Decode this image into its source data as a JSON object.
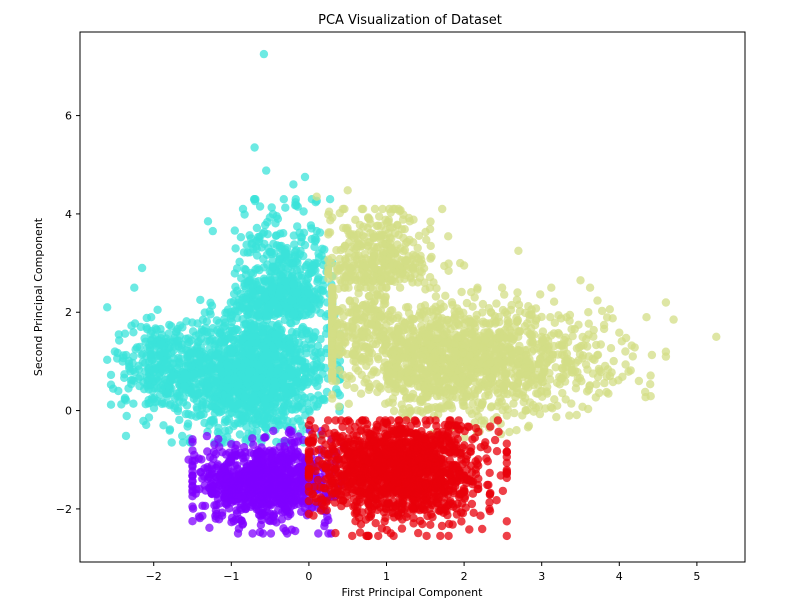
{
  "chart_data": {
    "type": "scatter",
    "title": "PCA Visualization of Dataset",
    "xlabel": "First Principal Component",
    "ylabel": "Second Principal Component",
    "xlim": [
      -2.95,
      5.62
    ],
    "ylim": [
      -3.08,
      7.7
    ],
    "x_ticks": [
      -2,
      -1,
      0,
      1,
      2,
      3,
      4,
      5
    ],
    "y_ticks": [
      -2,
      0,
      2,
      4,
      6
    ],
    "x_tick_labels": [
      "−2",
      "−1",
      "0",
      "1",
      "2",
      "3",
      "4",
      "5"
    ],
    "y_tick_labels": [
      "−2",
      "0",
      "2",
      "4",
      "6"
    ],
    "grid": false,
    "legend": "none",
    "marker_alpha": 0.75,
    "series": [
      {
        "color": "#3BE3DA",
        "cluster_extent": {
          "x": [
            -2.6,
            0.4
          ],
          "y": [
            -0.7,
            4.8
          ]
        },
        "points": [
          [
            -0.58,
            7.25
          ],
          [
            -0.7,
            5.35
          ],
          [
            -0.55,
            4.88
          ],
          [
            -0.05,
            4.75
          ],
          [
            -0.2,
            4.6
          ],
          [
            -2.15,
            2.9
          ],
          [
            -2.6,
            2.1
          ],
          [
            -2.25,
            2.5
          ],
          [
            -2.45,
            1.55
          ],
          [
            -2.5,
            1.2
          ],
          [
            -1.95,
            2.05
          ],
          [
            -1.3,
            3.85
          ],
          [
            -0.85,
            4.1
          ],
          [
            -0.4,
            3.9
          ],
          [
            0.1,
            3.65
          ],
          [
            -1.4,
            2.25
          ],
          [
            -0.3,
            3.2
          ]
        ]
      },
      {
        "color": "#D3DD85",
        "cluster_extent": {
          "x": [
            0.2,
            4.9
          ],
          "y": [
            -0.6,
            4.6
          ]
        },
        "points": [
          [
            0.5,
            4.48
          ],
          [
            0.1,
            4.35
          ],
          [
            1.3,
            3.85
          ],
          [
            0.95,
            4.1
          ],
          [
            1.95,
            3.0
          ],
          [
            2.0,
            2.95
          ],
          [
            3.5,
            2.65
          ],
          [
            4.35,
            1.9
          ],
          [
            4.7,
            1.85
          ],
          [
            5.25,
            1.5
          ],
          [
            2.7,
            3.25
          ],
          [
            3.6,
            2.0
          ],
          [
            2.5,
            0.5
          ],
          [
            3.2,
            0.1
          ]
        ]
      },
      {
        "color": "#7F00FF",
        "cluster_extent": {
          "x": [
            -1.5,
            0.45
          ],
          "y": [
            -2.5,
            -0.4
          ]
        },
        "points": [
          [
            -0.3,
            -2.45
          ],
          [
            -0.85,
            -2.3
          ],
          [
            -1.55,
            -1.0
          ],
          [
            -1.45,
            -1.6
          ],
          [
            0.2,
            -2.35
          ],
          [
            -1.2,
            -2.2
          ]
        ]
      },
      {
        "color": "#E8000B",
        "cluster_extent": {
          "x": [
            0.0,
            2.55
          ],
          "y": [
            -2.55,
            -0.2
          ]
        },
        "points": [
          [
            1.8,
            -2.55
          ],
          [
            2.4,
            -0.6
          ],
          [
            2.1,
            -1.9
          ],
          [
            0.6,
            -2.25
          ],
          [
            1.2,
            -2.4
          ],
          [
            1.9,
            -0.3
          ]
        ]
      }
    ]
  }
}
